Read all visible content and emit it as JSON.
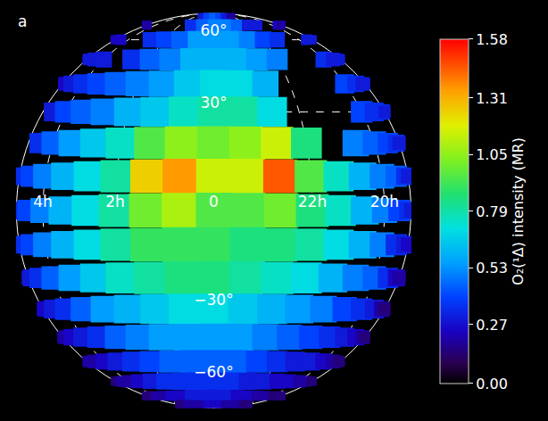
{
  "chart_data": {
    "type": "heatmap",
    "panel_label": "a",
    "grid": true,
    "x": [
      -90,
      -80,
      -70,
      -60,
      -50,
      -40,
      -30,
      -20,
      -10,
      0,
      10,
      20,
      30,
      40,
      50,
      60,
      70,
      80,
      90
    ],
    "y": [
      80,
      70,
      60,
      50,
      40,
      30,
      20,
      10,
      0,
      -10,
      -20,
      -30,
      -40,
      -50,
      -60,
      -70,
      -80
    ],
    "cells": [
      [
        null,
        null,
        null,
        null,
        null,
        null,
        null,
        0.3,
        0.4,
        0.45,
        0.4,
        0.3,
        0.2,
        null,
        null,
        null,
        null,
        null,
        null
      ],
      [
        0.2,
        0.2,
        null,
        null,
        null,
        null,
        null,
        0.35,
        0.45,
        0.5,
        0.5,
        0.45,
        0.3,
        0.3,
        null,
        null,
        0.25,
        0.2,
        0.2
      ],
      [
        0.25,
        0.25,
        0.25,
        null,
        null,
        0.35,
        0.4,
        0.45,
        0.55,
        0.55,
        0.55,
        0.5,
        0.4,
        0.35,
        null,
        null,
        0.3,
        0.3,
        0.3
      ],
      [
        0.3,
        0.3,
        0.3,
        0.3,
        null,
        0.35,
        0.45,
        0.5,
        0.6,
        0.6,
        0.6,
        0.55,
        0.5,
        null,
        null,
        0.35,
        0.3,
        0.3,
        0.3
      ],
      [
        null,
        0.25,
        0.3,
        0.35,
        0.4,
        0.45,
        0.5,
        0.55,
        0.65,
        0.7,
        0.7,
        0.6,
        null,
        null,
        null,
        0.4,
        0.35,
        0.3,
        0.3
      ],
      [
        null,
        null,
        0.3,
        0.4,
        0.45,
        0.5,
        0.6,
        0.65,
        0.75,
        0.8,
        0.8,
        0.7,
        null,
        null,
        null,
        0.4,
        0.35,
        0.35,
        0.3
      ],
      [
        null,
        null,
        0.35,
        0.45,
        0.55,
        0.65,
        0.75,
        0.95,
        1.05,
        1.0,
        1.05,
        1.15,
        0.85,
        null,
        0.5,
        0.45,
        0.4,
        0.35,
        0.3
      ],
      [
        0.3,
        0.35,
        0.4,
        0.5,
        0.6,
        0.7,
        0.8,
        1.25,
        1.35,
        1.15,
        1.15,
        1.45,
        0.95,
        0.75,
        0.6,
        0.5,
        0.45,
        0.35,
        0.3
      ],
      [
        0.3,
        0.35,
        0.4,
        0.5,
        0.6,
        0.7,
        0.8,
        1.0,
        1.1,
        0.95,
        0.95,
        1.0,
        0.85,
        0.75,
        0.6,
        0.5,
        0.4,
        0.35,
        0.3
      ],
      [
        0.3,
        0.35,
        0.4,
        0.5,
        0.6,
        0.7,
        0.8,
        0.9,
        0.9,
        0.9,
        0.85,
        0.85,
        0.8,
        0.7,
        0.6,
        0.5,
        0.35,
        0.3,
        0.25
      ],
      [
        0.3,
        0.3,
        0.35,
        0.45,
        0.55,
        0.65,
        0.75,
        0.8,
        0.85,
        0.85,
        0.8,
        0.75,
        0.7,
        0.6,
        0.5,
        0.45,
        0.35,
        0.25,
        0.2
      ],
      [
        0.25,
        0.25,
        0.3,
        0.35,
        0.45,
        0.55,
        0.6,
        0.65,
        0.7,
        0.7,
        0.65,
        0.6,
        0.55,
        0.5,
        0.4,
        0.35,
        0.3,
        0.2,
        0.15
      ],
      [
        0.2,
        0.2,
        0.25,
        0.3,
        0.35,
        0.45,
        0.5,
        0.55,
        0.55,
        0.55,
        0.55,
        0.5,
        0.45,
        0.4,
        0.35,
        0.3,
        0.25,
        0.2,
        0.15
      ],
      [
        0.2,
        0.2,
        0.2,
        0.25,
        0.3,
        0.35,
        0.4,
        0.45,
        0.45,
        0.45,
        0.45,
        0.4,
        0.35,
        0.3,
        0.3,
        0.25,
        0.2,
        0.15,
        0.15
      ],
      [
        0.15,
        0.15,
        0.2,
        0.2,
        0.25,
        0.3,
        0.35,
        0.35,
        0.35,
        0.35,
        0.35,
        0.3,
        0.3,
        0.25,
        0.25,
        0.2,
        0.2,
        0.15,
        0.15
      ],
      [
        0.15,
        0.15,
        0.15,
        0.2,
        0.2,
        0.25,
        0.25,
        0.3,
        0.3,
        0.3,
        0.3,
        0.25,
        0.25,
        0.2,
        0.2,
        0.15,
        0.15,
        0.15,
        0.15
      ],
      [
        0.15,
        0.15,
        0.15,
        0.15,
        0.2,
        0.2,
        0.2,
        0.2,
        0.25,
        0.25,
        0.25,
        0.2,
        0.2,
        0.2,
        0.2,
        0.15,
        0.15,
        0.15,
        0.15
      ]
    ],
    "xticks": [
      {
        "value": -60,
        "label": "4h"
      },
      {
        "value": -30,
        "label": "2h"
      },
      0,
      {
        "value": 30,
        "label": "22h"
      },
      {
        "value": 60,
        "label": "20h"
      }
    ],
    "yticks": [
      {
        "value": 60,
        "label": "60°"
      },
      {
        "value": 30,
        "label": "30°"
      },
      {
        "value": -30,
        "label": "−30°"
      },
      {
        "value": -60,
        "label": "−60°"
      }
    ],
    "colorbar": {
      "title": "O₂(¹Δ) intensity (MR)",
      "range": [
        0,
        1.58
      ],
      "ticks": [
        {
          "value": 0,
          "label": "0.00"
        },
        0.27,
        0.53,
        0.79,
        1.05,
        1.31,
        1.58
      ]
    }
  }
}
